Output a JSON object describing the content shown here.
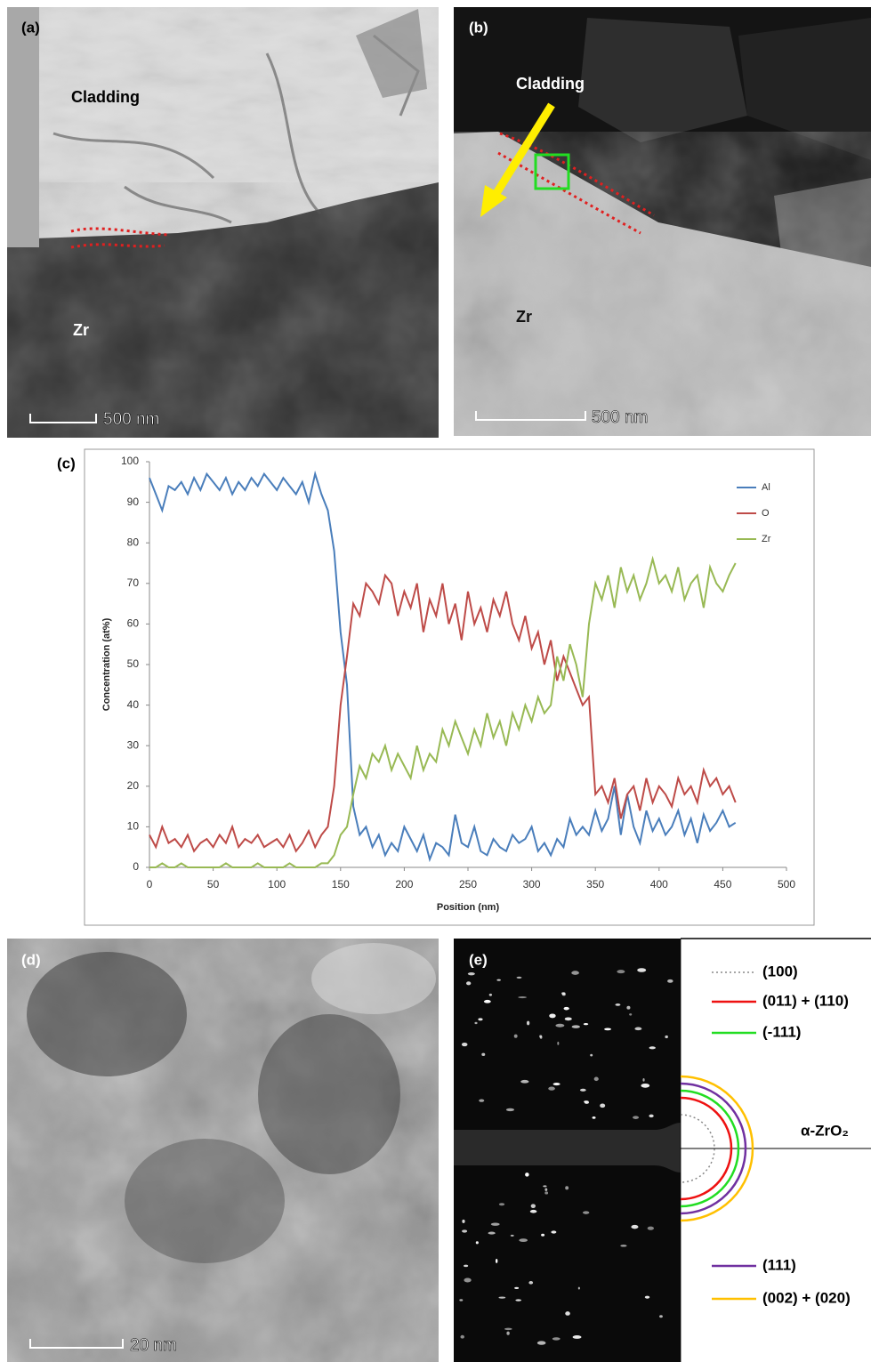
{
  "panels": {
    "a": {
      "label": "(a)",
      "annotations": [
        "Cladding",
        "Zr"
      ],
      "scale_bar": "500 nm"
    },
    "b": {
      "label": "(b)",
      "annotations": [
        "Cladding",
        "Zr"
      ],
      "scale_bar": "500 nm"
    },
    "c": {
      "label": "(c)"
    },
    "d": {
      "label": "(d)",
      "scale_bar": "20 nm"
    },
    "e": {
      "label": "(e)",
      "legend": [
        "(100)",
        "(011) + (110)",
        "(-111)",
        "(111)",
        "(002) + (020)"
      ],
      "phase": "α-ZrO₂"
    }
  },
  "chart_data": {
    "type": "line",
    "xlabel": "Position (nm)",
    "ylabel": "Concentration (at%)",
    "x": [
      0,
      5,
      10,
      15,
      20,
      25,
      30,
      35,
      40,
      45,
      50,
      55,
      60,
      65,
      70,
      75,
      80,
      85,
      90,
      95,
      100,
      105,
      110,
      115,
      120,
      125,
      130,
      135,
      140,
      145,
      150,
      155,
      160,
      165,
      170,
      175,
      180,
      185,
      190,
      195,
      200,
      205,
      210,
      215,
      220,
      225,
      230,
      235,
      240,
      245,
      250,
      255,
      260,
      265,
      270,
      275,
      280,
      285,
      290,
      295,
      300,
      305,
      310,
      315,
      320,
      325,
      330,
      335,
      340,
      345,
      350,
      355,
      360,
      365,
      370,
      375,
      380,
      385,
      390,
      395,
      400,
      405,
      410,
      415,
      420,
      425,
      430,
      435,
      440,
      445,
      450,
      455,
      460
    ],
    "series": [
      {
        "name": "Al",
        "color": "#4a7ebb",
        "values": [
          96,
          92,
          88,
          94,
          93,
          95,
          92,
          96,
          93,
          97,
          95,
          93,
          96,
          92,
          95,
          93,
          96,
          94,
          97,
          95,
          93,
          96,
          94,
          92,
          95,
          90,
          97,
          92,
          88,
          78,
          58,
          45,
          15,
          8,
          10,
          5,
          8,
          3,
          6,
          4,
          10,
          7,
          4,
          8,
          2,
          6,
          5,
          3,
          13,
          6,
          5,
          10,
          4,
          3,
          7,
          5,
          4,
          8,
          6,
          7,
          10,
          4,
          6,
          3,
          7,
          5,
          12,
          8,
          10,
          8,
          14,
          9,
          12,
          20,
          8,
          18,
          10,
          6,
          14,
          9,
          12,
          8,
          10,
          14,
          8,
          12,
          6,
          13,
          9,
          11,
          14,
          10,
          11
        ]
      },
      {
        "name": "O",
        "color": "#be4b48",
        "values": [
          8,
          5,
          10,
          6,
          7,
          5,
          8,
          4,
          6,
          7,
          5,
          8,
          6,
          10,
          5,
          7,
          6,
          8,
          5,
          6,
          7,
          5,
          8,
          4,
          6,
          9,
          5,
          8,
          10,
          20,
          40,
          52,
          65,
          62,
          70,
          68,
          65,
          72,
          70,
          62,
          68,
          64,
          70,
          58,
          66,
          62,
          70,
          60,
          65,
          56,
          68,
          60,
          64,
          58,
          66,
          62,
          68,
          60,
          56,
          62,
          54,
          58,
          50,
          56,
          46,
          52,
          48,
          44,
          40,
          42,
          18,
          20,
          16,
          22,
          12,
          18,
          20,
          14,
          22,
          16,
          20,
          18,
          15,
          22,
          18,
          20,
          16,
          24,
          20,
          22,
          18,
          20,
          16
        ]
      },
      {
        "name": "Zr",
        "color": "#98b954",
        "values": [
          0,
          0,
          1,
          0,
          0,
          1,
          0,
          0,
          0,
          0,
          0,
          0,
          1,
          0,
          0,
          0,
          0,
          1,
          0,
          0,
          0,
          0,
          1,
          0,
          0,
          0,
          0,
          1,
          1,
          3,
          8,
          10,
          18,
          25,
          22,
          28,
          26,
          30,
          24,
          28,
          25,
          22,
          30,
          24,
          28,
          26,
          34,
          30,
          36,
          32,
          28,
          34,
          30,
          38,
          32,
          36,
          30,
          38,
          34,
          40,
          36,
          42,
          38,
          40,
          52,
          46,
          55,
          50,
          42,
          60,
          70,
          66,
          72,
          64,
          74,
          68,
          72,
          66,
          70,
          76,
          70,
          72,
          68,
          74,
          66,
          70,
          72,
          64,
          74,
          70,
          68,
          72,
          75
        ]
      }
    ],
    "xlim": [
      0,
      500
    ],
    "xticks": [
      0,
      50,
      100,
      150,
      200,
      250,
      300,
      350,
      400,
      450,
      500
    ],
    "ylim": [
      0,
      100
    ],
    "yticks": [
      0,
      10,
      20,
      30,
      40,
      50,
      60,
      70,
      80,
      90,
      100
    ],
    "legend": "upper right"
  }
}
